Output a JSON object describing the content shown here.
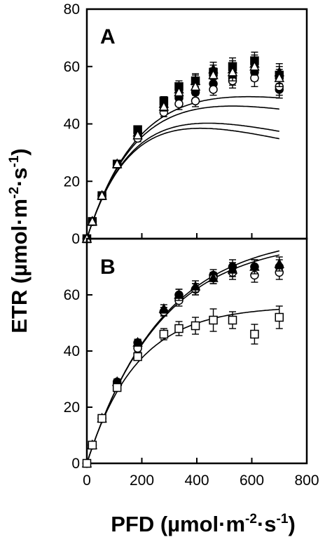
{
  "axes": {
    "xlabel": "PFD (µmol·m⁻²·s⁻¹)",
    "ylabel": "ETR (µmol·m⁻²·s⁻¹)",
    "xlabel_parts": [
      "PFD (µmol·m",
      "-2",
      "·s",
      "-1",
      ")"
    ],
    "ylabel_parts": [
      "ETR (µmol·m",
      "-2",
      "·s",
      "-1",
      ")"
    ],
    "xlim": [
      0,
      800
    ],
    "x_ticks": [
      "0",
      "200",
      "400",
      "600",
      "800"
    ]
  },
  "chart_data": [
    {
      "type": "scatter",
      "panel_label": "A",
      "xlim": [
        0,
        800
      ],
      "ylim": [
        0,
        80
      ],
      "y_ticks": [
        "0",
        "20",
        "40",
        "60",
        "80"
      ],
      "x": [
        0,
        20,
        55,
        110,
        185,
        280,
        335,
        395,
        460,
        530,
        610,
        700
      ],
      "series": [
        {
          "marker": "filled-circle",
          "values": [
            0,
            6,
            15,
            26,
            37,
            46,
            49,
            51,
            54,
            56,
            58,
            52
          ],
          "errors": [
            0,
            0.6,
            0.8,
            1,
            1.2,
            1.5,
            2,
            2,
            2,
            2.5,
            3,
            3
          ]
        },
        {
          "marker": "open-circle",
          "values": [
            0,
            6,
            15,
            26,
            35,
            44,
            47,
            48,
            52,
            55,
            56,
            53
          ],
          "errors": [
            0,
            0.6,
            0.8,
            1,
            1.2,
            1.5,
            2,
            2,
            2,
            2.5,
            3,
            3
          ]
        },
        {
          "marker": "filled-square",
          "values": [
            0,
            6,
            15,
            26,
            38,
            48,
            53,
            55,
            58,
            60,
            62,
            57
          ],
          "errors": [
            0,
            0.6,
            0.8,
            1,
            1.2,
            1.5,
            2,
            2,
            2.5,
            3,
            3,
            3
          ]
        },
        {
          "marker": "filled-triangle",
          "values": [
            0,
            6,
            15,
            26,
            37,
            47,
            52,
            55,
            59,
            59,
            61,
            58
          ],
          "errors": [
            0,
            0.6,
            0.8,
            1,
            1.2,
            1.5,
            2,
            2.5,
            2.5,
            3,
            3,
            3
          ]
        },
        {
          "marker": "open-triangle",
          "values": [
            0,
            6,
            15,
            26,
            36,
            46,
            51,
            53,
            57,
            58,
            60,
            56
          ],
          "errors": [
            0,
            0.6,
            0.8,
            1,
            1.2,
            1.5,
            2,
            2.5,
            2.5,
            3,
            3,
            3
          ]
        }
      ],
      "fit_curves": [
        {
          "pmax": 58,
          "alpha": 0.3,
          "beta": 0.04
        },
        {
          "pmax": 58.5,
          "alpha": 0.3,
          "beta": 0.035
        },
        {
          "pmax": 62,
          "alpha": 0.3,
          "beta": 0.025
        },
        {
          "pmax": 63.5,
          "alpha": 0.3,
          "beta": 0.02
        }
      ]
    },
    {
      "type": "scatter",
      "panel_label": "B",
      "xlim": [
        0,
        800
      ],
      "ylim": [
        0,
        80
      ],
      "y_ticks": [
        "0",
        "20",
        "40",
        "60"
      ],
      "x": [
        0,
        20,
        55,
        110,
        185,
        280,
        335,
        395,
        460,
        530,
        610,
        700
      ],
      "series": [
        {
          "marker": "filled-circle",
          "values": [
            0,
            6.5,
            16,
            29,
            43,
            54,
            60,
            62,
            67,
            70,
            70,
            70
          ],
          "errors": [
            0,
            0.5,
            0.8,
            1,
            1.2,
            1.5,
            2,
            2,
            2,
            2.5,
            2.5,
            2.5
          ]
        },
        {
          "marker": "open-circle",
          "values": [
            0,
            6.5,
            16,
            28,
            41,
            54,
            58,
            62,
            66,
            68,
            67,
            68
          ],
          "errors": [
            0,
            0.5,
            0.8,
            1,
            1.2,
            1.5,
            2,
            2,
            2,
            2.5,
            2.5,
            2.5
          ]
        },
        {
          "marker": "filled-triangle",
          "values": [
            0,
            6.5,
            16,
            29,
            43,
            55,
            60,
            63,
            66,
            69,
            70,
            71
          ],
          "errors": [
            0,
            0.5,
            0.8,
            1,
            1.2,
            1.5,
            2,
            2,
            2,
            2.5,
            2.5,
            2.5
          ]
        },
        {
          "marker": "open-square",
          "values": [
            0,
            6.5,
            16,
            27,
            38,
            46,
            48,
            49,
            51,
            51,
            46,
            52
          ],
          "errors": [
            0,
            0.5,
            0.8,
            1,
            1.2,
            2,
            2.5,
            3,
            4,
            3,
            3.5,
            4
          ]
        }
      ],
      "fit_curves": [
        {
          "pmax": 80,
          "alpha": 0.3,
          "beta": 0
        },
        {
          "pmax": 82,
          "alpha": 0.3,
          "beta": 0
        },
        {
          "pmax": 56,
          "alpha": 0.31,
          "beta": 0
        }
      ]
    }
  ]
}
